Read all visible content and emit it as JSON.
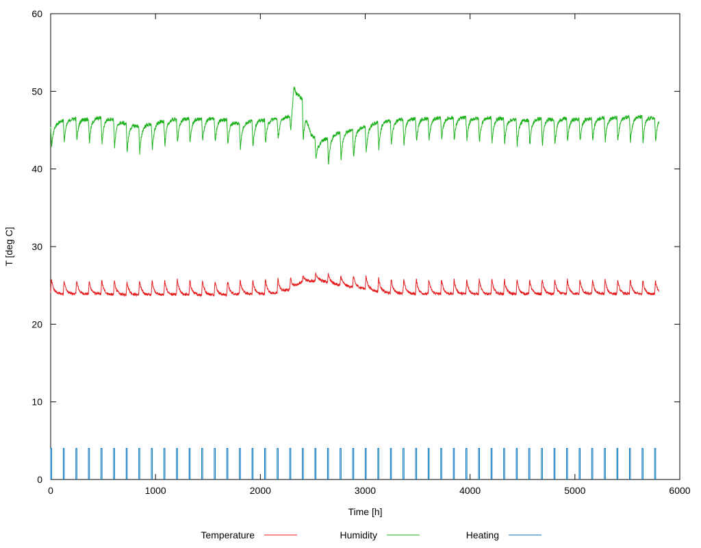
{
  "chart_data": {
    "type": "line",
    "title": "",
    "xlabel": "Time [h]",
    "ylabel": "T [deg C]",
    "xlim": [
      0,
      6000
    ],
    "ylim": [
      0,
      60
    ],
    "xticks": [
      0,
      1000,
      2000,
      3000,
      4000,
      5000,
      6000
    ],
    "yticks": [
      0,
      10,
      20,
      30,
      40,
      50,
      60
    ],
    "grid": false,
    "legend_position": "bottom",
    "cycle_period_h": 120,
    "series": [
      {
        "name": "Temperature",
        "color": "#e41a1c",
        "x": [
          0,
          120,
          240,
          360,
          480,
          600,
          720,
          840,
          960,
          1080,
          1200,
          1320,
          1440,
          1560,
          1680,
          1800,
          1920,
          2040,
          2160,
          2280,
          2400,
          2520,
          2560,
          2640,
          2760,
          2880,
          3000,
          3120,
          3240,
          3360,
          3480,
          3600,
          3720,
          3840,
          3960,
          4080,
          4200,
          4320,
          4440,
          4560,
          4680,
          4800,
          4920,
          5040,
          5160,
          5280,
          5400,
          5520,
          5640,
          5800
        ],
        "peaks": [
          25.8,
          25.7,
          25.7,
          25.6,
          25.7,
          25.7,
          25.6,
          25.7,
          25.7,
          25.6,
          25.8,
          25.7,
          25.7,
          25.7,
          25.6,
          25.7,
          25.7,
          25.8,
          25.9,
          26.0,
          26.2,
          26.4,
          27.1,
          26.6,
          26.3,
          26.2,
          26.2,
          26.0,
          25.9,
          25.8,
          25.8,
          25.8,
          25.8,
          25.8,
          25.8,
          25.8,
          25.8,
          25.8,
          25.8,
          25.8,
          25.8,
          25.8,
          25.8,
          25.8,
          25.8,
          25.8,
          25.8,
          25.8,
          25.8,
          25.6
        ],
        "troughs": [
          24.0,
          23.9,
          23.9,
          23.9,
          23.9,
          23.8,
          23.8,
          23.8,
          23.8,
          23.8,
          23.8,
          23.8,
          23.8,
          23.8,
          23.8,
          23.9,
          23.9,
          23.9,
          24.0,
          24.5,
          25.5,
          25.6,
          25.6,
          25.4,
          25.0,
          24.8,
          24.6,
          24.2,
          24.0,
          24.0,
          23.9,
          23.9,
          23.9,
          23.9,
          23.9,
          23.9,
          23.9,
          23.9,
          23.9,
          23.9,
          23.9,
          23.9,
          23.9,
          23.9,
          23.9,
          23.9,
          23.9,
          23.9,
          23.9,
          23.9
        ]
      },
      {
        "name": "Humidity",
        "color": "#1ab01a",
        "x": [
          0,
          120,
          240,
          360,
          480,
          600,
          720,
          840,
          960,
          1080,
          1200,
          1320,
          1440,
          1560,
          1680,
          1800,
          1920,
          2040,
          2160,
          2280,
          2320,
          2340,
          2400,
          2480,
          2560,
          2640,
          2760,
          2880,
          3000,
          3120,
          3240,
          3360,
          3480,
          3600,
          3720,
          3840,
          3960,
          4080,
          4200,
          4320,
          4440,
          4560,
          4680,
          4800,
          4920,
          5040,
          5160,
          5280,
          5400,
          5520,
          5640,
          5800
        ],
        "peaks": [
          45.5,
          46.3,
          46.5,
          46.4,
          46.6,
          46.4,
          45.8,
          45.5,
          45.8,
          46.2,
          46.4,
          46.5,
          46.4,
          46.5,
          46.3,
          45.8,
          46.2,
          46.3,
          46.5,
          46.8,
          51.5,
          50.0,
          49.0,
          44.5,
          43.5,
          44.0,
          44.8,
          45.0,
          45.5,
          46.0,
          46.2,
          46.4,
          46.5,
          46.5,
          46.6,
          46.6,
          46.6,
          46.5,
          46.6,
          46.5,
          46.3,
          46.3,
          46.5,
          46.4,
          46.5,
          46.4,
          46.5,
          46.6,
          46.6,
          46.7,
          46.7,
          46.5
        ],
        "troughs": [
          42.8,
          43.4,
          43.6,
          43.4,
          43.2,
          42.8,
          42.2,
          41.8,
          42.3,
          42.9,
          43.4,
          43.2,
          43.5,
          43.4,
          43.3,
          42.6,
          42.8,
          43.2,
          43.6,
          44.5,
          45.5,
          44.0,
          43.5,
          42.8,
          40.3,
          40.5,
          41.0,
          41.5,
          42.0,
          42.5,
          43.0,
          43.0,
          43.4,
          43.6,
          43.6,
          43.6,
          43.6,
          43.5,
          43.3,
          43.2,
          43.0,
          43.0,
          43.0,
          43.0,
          43.4,
          43.5,
          43.6,
          43.6,
          43.5,
          43.4,
          43.3,
          43.5
        ]
      },
      {
        "name": "Heating",
        "color": "#0072bd",
        "on_value": 4,
        "off_value": 0,
        "on_duration_h": 10,
        "off_duration_h": 110,
        "period_h": 120,
        "x_start": 0,
        "x_end": 5800
      }
    ]
  }
}
